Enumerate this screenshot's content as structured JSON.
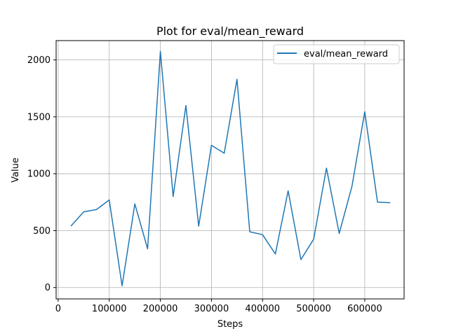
{
  "chart_data": {
    "type": "line",
    "title": "Plot for eval/mean_reward",
    "xlabel": "Steps",
    "ylabel": "Value",
    "xlim": [
      -4000,
      677000
    ],
    "ylim": [
      -100,
      2170
    ],
    "xticks": [
      0,
      100000,
      200000,
      300000,
      400000,
      500000,
      600000
    ],
    "xtick_labels": [
      "0",
      "100000",
      "200000",
      "300000",
      "400000",
      "500000",
      "600000"
    ],
    "yticks": [
      0,
      500,
      1000,
      1500,
      2000
    ],
    "ytick_labels": [
      "0",
      "500",
      "1000",
      "1500",
      "2000"
    ],
    "grid": true,
    "legend_position": "top-right",
    "series": [
      {
        "name": "eval/mean_reward",
        "color": "#1f77b4",
        "x": [
          25000,
          50000,
          75000,
          100000,
          125000,
          150000,
          175000,
          200000,
          225000,
          250000,
          275000,
          300000,
          325000,
          350000,
          375000,
          400000,
          425000,
          450000,
          475000,
          500000,
          525000,
          550000,
          575000,
          600000,
          625000,
          650000
        ],
        "y": [
          540,
          665,
          685,
          770,
          15,
          735,
          340,
          2075,
          800,
          1600,
          540,
          1250,
          1180,
          1830,
          490,
          465,
          295,
          850,
          245,
          425,
          1050,
          475,
          890,
          1545,
          750,
          745
        ]
      }
    ]
  }
}
